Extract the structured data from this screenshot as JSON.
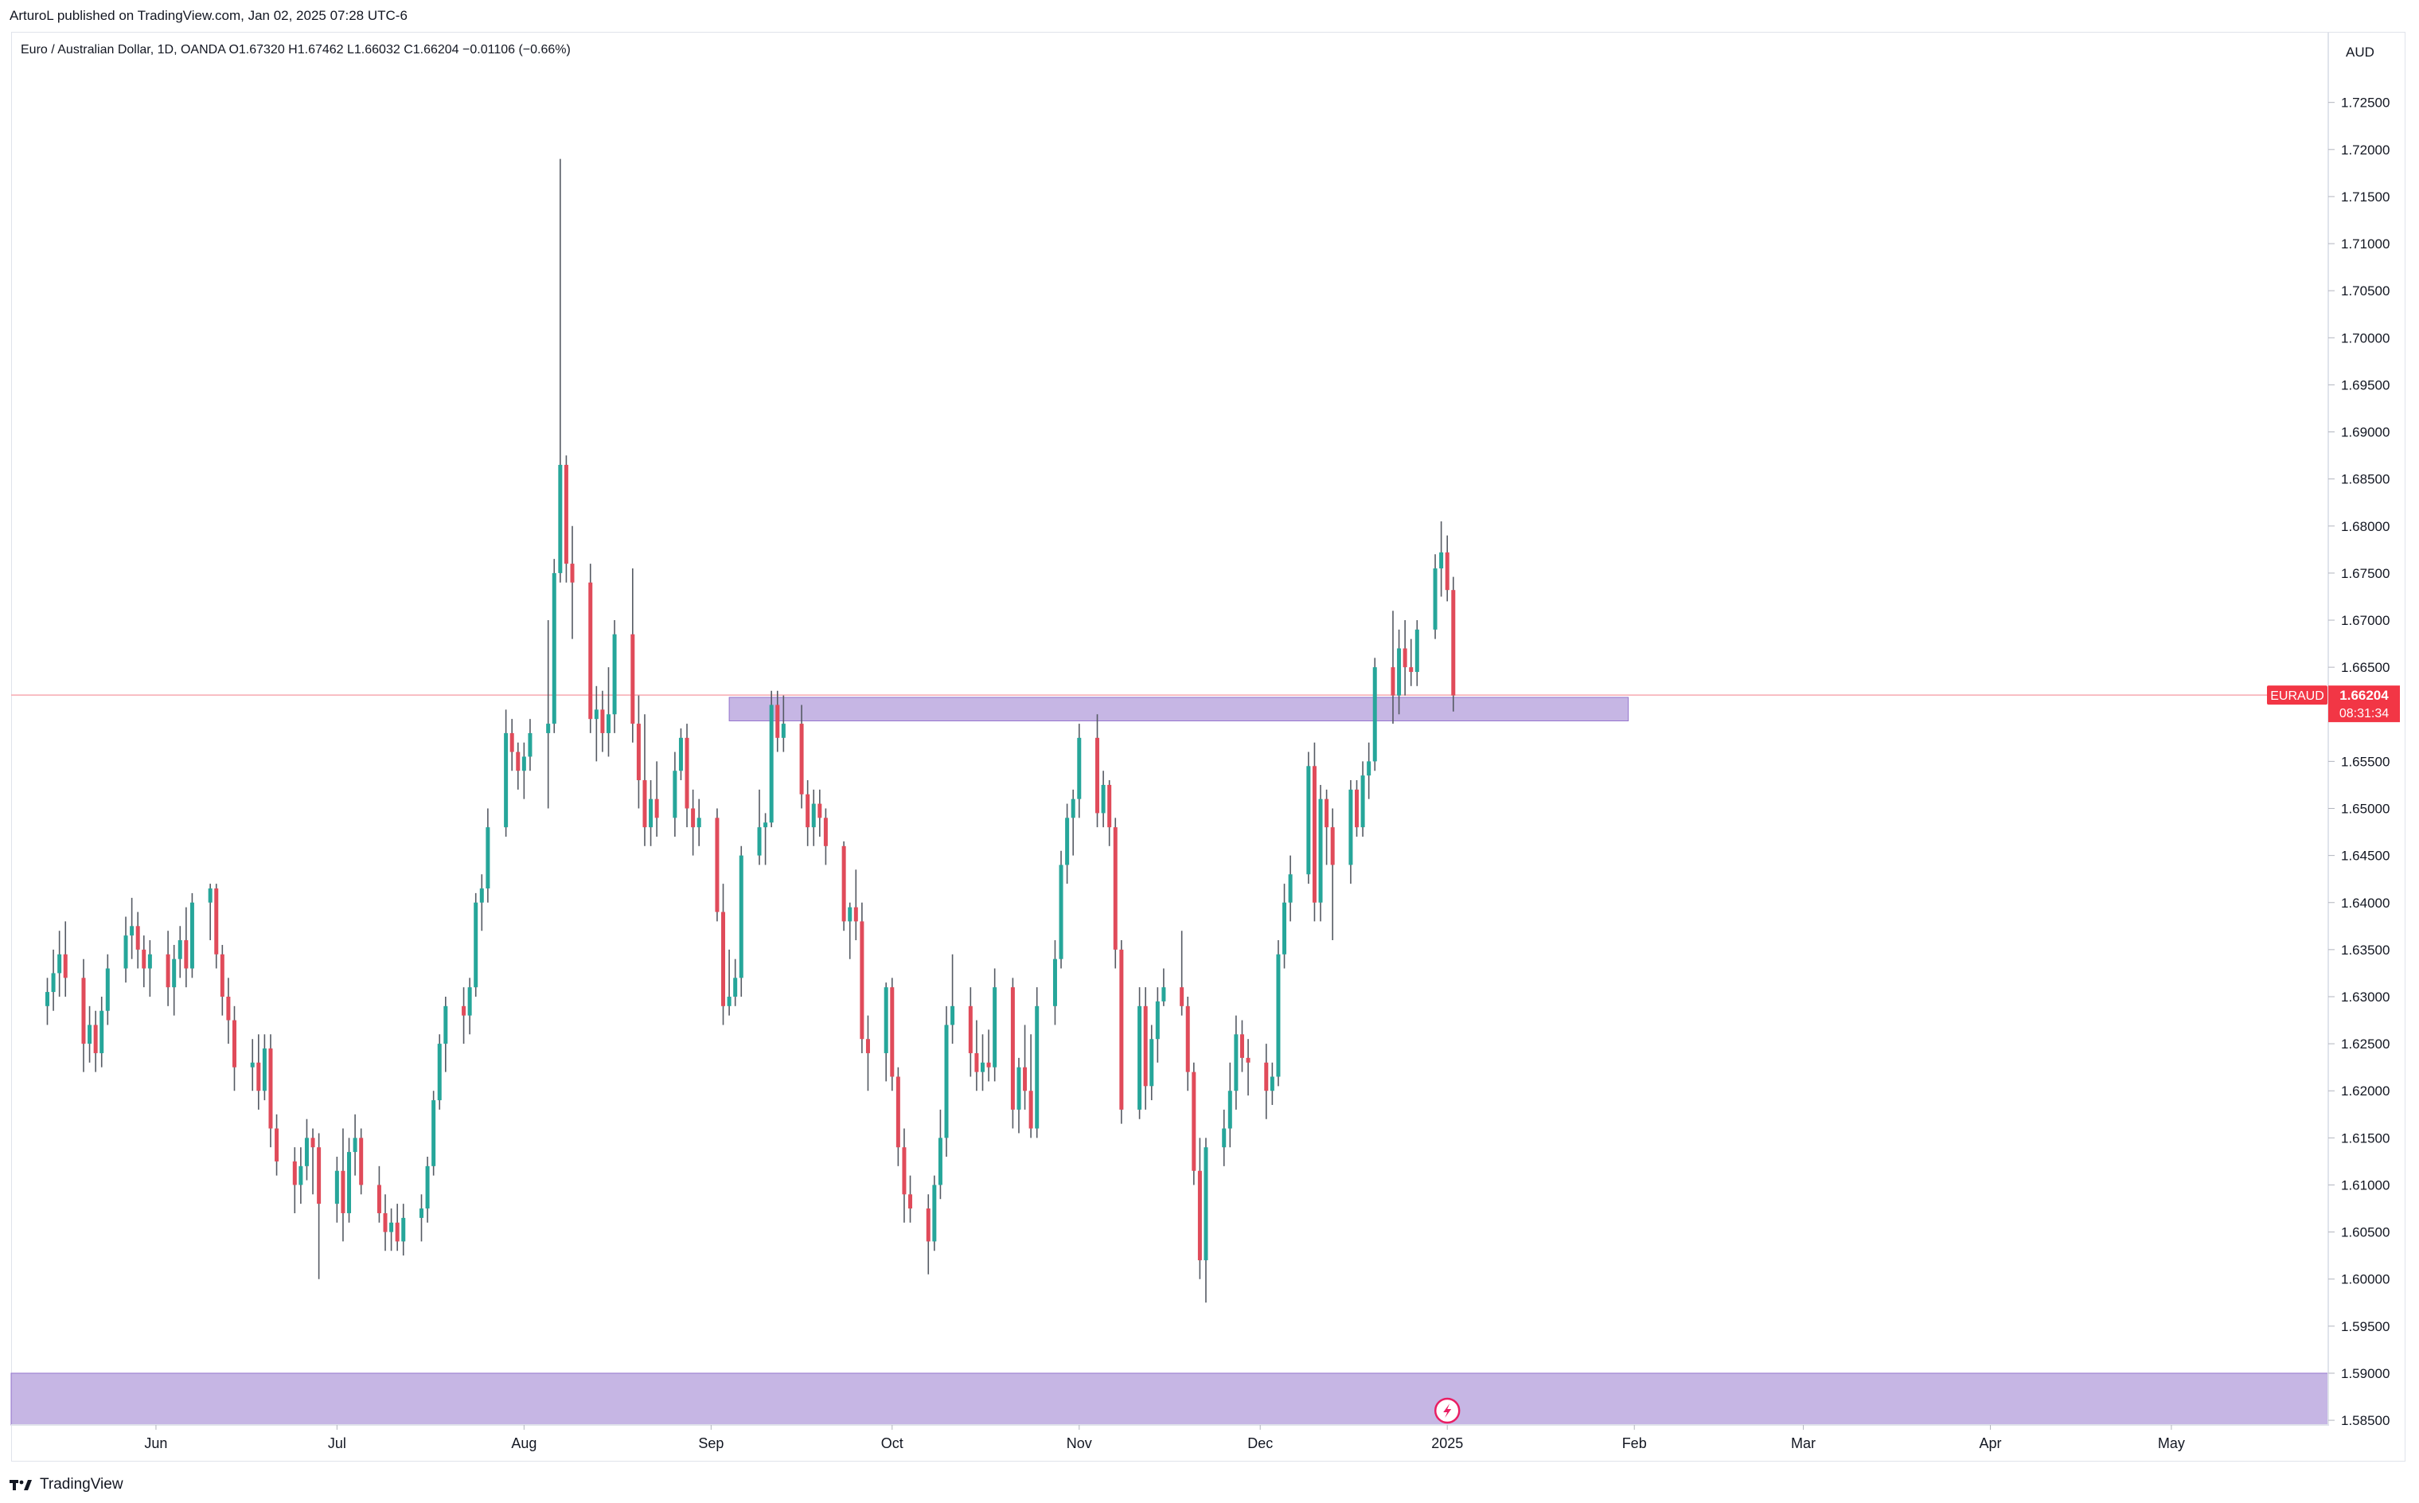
{
  "header": {
    "published": "ArturoL published on TradingView.com, Jan 02, 2025 07:28 UTC-6"
  },
  "legend": {
    "text": "Euro / Australian Dollar, 1D, OANDA  O1.67320  H1.67462  L1.66032  C1.66204  −0.01106 (−0.66%)"
  },
  "footer": {
    "brand": "TradingView"
  },
  "colors": {
    "up": "#26a69a",
    "down": "#e04b5a",
    "zone": "#b39ddb",
    "price_line": "#f7a9b0",
    "price_label": "#f23645"
  },
  "chart_data": {
    "type": "candlestick",
    "symbol": "EURAUD",
    "currency_label": "AUD",
    "last_price": "1.66204",
    "countdown": "08:31:34",
    "ylim": [
      1.5845,
      1.7325
    ],
    "y_ticks": [
      "1.72500",
      "1.72000",
      "1.71500",
      "1.71000",
      "1.70500",
      "1.70000",
      "1.69500",
      "1.69000",
      "1.68500",
      "1.68000",
      "1.67500",
      "1.67000",
      "1.66500",
      "1.66000",
      "1.65500",
      "1.65000",
      "1.64500",
      "1.64000",
      "1.63500",
      "1.63000",
      "1.62500",
      "1.62000",
      "1.61500",
      "1.61000",
      "1.60500",
      "1.60000",
      "1.59500",
      "1.59000",
      "1.58500"
    ],
    "x_labels": [
      {
        "label": "Jun",
        "date": "2024-06-01"
      },
      {
        "label": "Jul",
        "date": "2024-07-01"
      },
      {
        "label": "Aug",
        "date": "2024-08-01"
      },
      {
        "label": "Sep",
        "date": "2024-09-01"
      },
      {
        "label": "Oct",
        "date": "2024-10-01"
      },
      {
        "label": "Nov",
        "date": "2024-11-01"
      },
      {
        "label": "Dec",
        "date": "2024-12-01"
      },
      {
        "label": "2025",
        "date": "2025-01-01"
      },
      {
        "label": "Feb",
        "date": "2025-02-01"
      },
      {
        "label": "Mar",
        "date": "2025-03-01"
      },
      {
        "label": "Apr",
        "date": "2025-04-01"
      },
      {
        "label": "May",
        "date": "2025-05-01"
      }
    ],
    "x_range": [
      "2024-05-08",
      "2025-05-27"
    ],
    "zones": [
      {
        "from_date": "2024-09-04",
        "to_date": "2025-01-31",
        "low": 1.6593,
        "high": 1.6618
      },
      {
        "from_date": "2024-05-08",
        "to_date": "2025-05-27",
        "low": 1.5845,
        "high": 1.59
      }
    ],
    "candles": [
      [
        "2024-05-14",
        1.629,
        1.632,
        1.627,
        1.6305
      ],
      [
        "2024-05-15",
        1.6305,
        1.635,
        1.6285,
        1.6325
      ],
      [
        "2024-05-16",
        1.6325,
        1.637,
        1.63,
        1.6345
      ],
      [
        "2024-05-17",
        1.6345,
        1.638,
        1.63,
        1.632
      ],
      [
        "2024-05-20",
        1.632,
        1.634,
        1.622,
        1.625
      ],
      [
        "2024-05-21",
        1.625,
        1.629,
        1.623,
        1.627
      ],
      [
        "2024-05-22",
        1.627,
        1.6285,
        1.622,
        1.624
      ],
      [
        "2024-05-23",
        1.624,
        1.63,
        1.6225,
        1.6285
      ],
      [
        "2024-05-24",
        1.6285,
        1.6345,
        1.627,
        1.633
      ],
      [
        "2024-05-27",
        1.633,
        1.6385,
        1.6315,
        1.6365
      ],
      [
        "2024-05-28",
        1.6365,
        1.6405,
        1.634,
        1.6375
      ],
      [
        "2024-05-29",
        1.6375,
        1.639,
        1.633,
        1.635
      ],
      [
        "2024-05-30",
        1.635,
        1.6365,
        1.631,
        1.633
      ],
      [
        "2024-05-31",
        1.633,
        1.636,
        1.63,
        1.6345
      ],
      [
        "2024-06-03",
        1.6345,
        1.637,
        1.629,
        1.631
      ],
      [
        "2024-06-04",
        1.631,
        1.6355,
        1.628,
        1.634
      ],
      [
        "2024-06-05",
        1.634,
        1.6375,
        1.632,
        1.636
      ],
      [
        "2024-06-06",
        1.636,
        1.6395,
        1.631,
        1.633
      ],
      [
        "2024-06-07",
        1.633,
        1.641,
        1.632,
        1.64
      ],
      [
        "2024-06-10",
        1.64,
        1.642,
        1.636,
        1.6415
      ],
      [
        "2024-06-11",
        1.6415,
        1.642,
        1.633,
        1.6345
      ],
      [
        "2024-06-12",
        1.6345,
        1.6355,
        1.628,
        1.63
      ],
      [
        "2024-06-13",
        1.63,
        1.632,
        1.625,
        1.6275
      ],
      [
        "2024-06-14",
        1.6275,
        1.629,
        1.62,
        1.6225
      ],
      [
        "2024-06-17",
        1.6225,
        1.6255,
        1.62,
        1.623
      ],
      [
        "2024-06-18",
        1.623,
        1.626,
        1.618,
        1.62
      ],
      [
        "2024-06-19",
        1.62,
        1.626,
        1.619,
        1.6245
      ],
      [
        "2024-06-20",
        1.6245,
        1.626,
        1.614,
        1.616
      ],
      [
        "2024-06-21",
        1.616,
        1.6175,
        1.611,
        1.6125
      ],
      [
        "2024-06-24",
        1.6125,
        1.614,
        1.607,
        1.61
      ],
      [
        "2024-06-25",
        1.61,
        1.614,
        1.608,
        1.612
      ],
      [
        "2024-06-26",
        1.612,
        1.617,
        1.6105,
        1.615
      ],
      [
        "2024-06-27",
        1.615,
        1.616,
        1.609,
        1.614
      ],
      [
        "2024-06-28",
        1.614,
        1.6155,
        1.6,
        1.608
      ],
      [
        "2024-07-01",
        1.608,
        1.613,
        1.606,
        1.6115
      ],
      [
        "2024-07-02",
        1.6115,
        1.616,
        1.604,
        1.607
      ],
      [
        "2024-07-03",
        1.607,
        1.615,
        1.606,
        1.6135
      ],
      [
        "2024-07-04",
        1.6135,
        1.6175,
        1.611,
        1.615
      ],
      [
        "2024-07-05",
        1.615,
        1.616,
        1.609,
        1.61
      ],
      [
        "2024-07-08",
        1.61,
        1.612,
        1.606,
        1.607
      ],
      [
        "2024-07-09",
        1.607,
        1.609,
        1.603,
        1.605
      ],
      [
        "2024-07-10",
        1.605,
        1.6075,
        1.603,
        1.606
      ],
      [
        "2024-07-11",
        1.606,
        1.608,
        1.603,
        1.604
      ],
      [
        "2024-07-12",
        1.604,
        1.608,
        1.6025,
        1.6065
      ],
      [
        "2024-07-15",
        1.6065,
        1.609,
        1.604,
        1.6075
      ],
      [
        "2024-07-16",
        1.6075,
        1.613,
        1.606,
        1.612
      ],
      [
        "2024-07-17",
        1.612,
        1.62,
        1.611,
        1.619
      ],
      [
        "2024-07-18",
        1.619,
        1.626,
        1.618,
        1.625
      ],
      [
        "2024-07-19",
        1.625,
        1.63,
        1.622,
        1.629
      ],
      [
        "2024-07-22",
        1.629,
        1.631,
        1.625,
        1.628
      ],
      [
        "2024-07-23",
        1.628,
        1.632,
        1.626,
        1.631
      ],
      [
        "2024-07-24",
        1.631,
        1.641,
        1.63,
        1.64
      ],
      [
        "2024-07-25",
        1.64,
        1.643,
        1.637,
        1.6415
      ],
      [
        "2024-07-26",
        1.6415,
        1.65,
        1.64,
        1.648
      ],
      [
        "2024-07-29",
        1.648,
        1.6605,
        1.647,
        1.658
      ],
      [
        "2024-07-30",
        1.658,
        1.6595,
        1.654,
        1.656
      ],
      [
        "2024-07-31",
        1.656,
        1.657,
        1.652,
        1.654
      ],
      [
        "2024-08-01",
        1.654,
        1.657,
        1.651,
        1.6555
      ],
      [
        "2024-08-02",
        1.6555,
        1.6595,
        1.654,
        1.658
      ],
      [
        "2024-08-05",
        1.658,
        1.67,
        1.65,
        1.659
      ],
      [
        "2024-08-06",
        1.659,
        1.6765,
        1.658,
        1.675
      ],
      [
        "2024-08-07",
        1.675,
        1.719,
        1.674,
        1.6865
      ],
      [
        "2024-08-08",
        1.6865,
        1.6875,
        1.674,
        1.676
      ],
      [
        "2024-08-09",
        1.676,
        1.68,
        1.668,
        1.674
      ],
      [
        "2024-08-12",
        1.674,
        1.676,
        1.658,
        1.6595
      ],
      [
        "2024-08-13",
        1.6595,
        1.663,
        1.655,
        1.6605
      ],
      [
        "2024-08-14",
        1.6605,
        1.6625,
        1.656,
        1.658
      ],
      [
        "2024-08-15",
        1.658,
        1.665,
        1.6555,
        1.66
      ],
      [
        "2024-08-16",
        1.66,
        1.67,
        1.658,
        1.6685
      ],
      [
        "2024-08-19",
        1.6685,
        1.6755,
        1.657,
        1.659
      ],
      [
        "2024-08-20",
        1.659,
        1.662,
        1.65,
        1.653
      ],
      [
        "2024-08-21",
        1.653,
        1.66,
        1.646,
        1.648
      ],
      [
        "2024-08-22",
        1.648,
        1.653,
        1.646,
        1.651
      ],
      [
        "2024-08-23",
        1.651,
        1.655,
        1.647,
        1.649
      ],
      [
        "2024-08-26",
        1.649,
        1.656,
        1.647,
        1.654
      ],
      [
        "2024-08-27",
        1.654,
        1.6585,
        1.653,
        1.6575
      ],
      [
        "2024-08-28",
        1.6575,
        1.659,
        1.648,
        1.65
      ],
      [
        "2024-08-29",
        1.65,
        1.652,
        1.645,
        1.648
      ],
      [
        "2024-08-30",
        1.648,
        1.651,
        1.646,
        1.649
      ],
      [
        "2024-09-02",
        1.649,
        1.65,
        1.638,
        1.639
      ],
      [
        "2024-09-03",
        1.639,
        1.642,
        1.627,
        1.629
      ],
      [
        "2024-09-04",
        1.629,
        1.635,
        1.628,
        1.63
      ],
      [
        "2024-09-05",
        1.63,
        1.634,
        1.629,
        1.632
      ],
      [
        "2024-09-06",
        1.632,
        1.646,
        1.63,
        1.645
      ],
      [
        "2024-09-09",
        1.645,
        1.652,
        1.644,
        1.648
      ],
      [
        "2024-09-10",
        1.648,
        1.6495,
        1.644,
        1.6485
      ],
      [
        "2024-09-11",
        1.6485,
        1.6625,
        1.648,
        1.661
      ],
      [
        "2024-09-12",
        1.661,
        1.6625,
        1.656,
        1.6575
      ],
      [
        "2024-09-13",
        1.6575,
        1.662,
        1.656,
        1.659
      ],
      [
        "2024-09-16",
        1.659,
        1.661,
        1.65,
        1.6515
      ],
      [
        "2024-09-17",
        1.6515,
        1.653,
        1.646,
        1.648
      ],
      [
        "2024-09-18",
        1.648,
        1.652,
        1.646,
        1.6505
      ],
      [
        "2024-09-19",
        1.6505,
        1.652,
        1.647,
        1.649
      ],
      [
        "2024-09-20",
        1.649,
        1.65,
        1.644,
        1.646
      ],
      [
        "2024-09-23",
        1.646,
        1.6465,
        1.637,
        1.638
      ],
      [
        "2024-09-24",
        1.638,
        1.64,
        1.634,
        1.6395
      ],
      [
        "2024-09-25",
        1.6395,
        1.6435,
        1.636,
        1.638
      ],
      [
        "2024-09-26",
        1.638,
        1.64,
        1.624,
        1.6255
      ],
      [
        "2024-09-27",
        1.6255,
        1.628,
        1.62,
        1.624
      ],
      [
        "2024-09-30",
        1.624,
        1.6315,
        1.621,
        1.631
      ],
      [
        "2024-10-01",
        1.631,
        1.632,
        1.62,
        1.6215
      ],
      [
        "2024-10-02",
        1.6215,
        1.6225,
        1.612,
        1.614
      ],
      [
        "2024-10-03",
        1.614,
        1.616,
        1.606,
        1.609
      ],
      [
        "2024-10-04",
        1.609,
        1.611,
        1.606,
        1.6075
      ],
      [
        "2024-10-07",
        1.6075,
        1.609,
        1.6005,
        1.604
      ],
      [
        "2024-10-08",
        1.604,
        1.611,
        1.603,
        1.61
      ],
      [
        "2024-10-09",
        1.61,
        1.618,
        1.6085,
        1.615
      ],
      [
        "2024-10-10",
        1.615,
        1.629,
        1.613,
        1.627
      ],
      [
        "2024-10-11",
        1.627,
        1.6345,
        1.625,
        1.629
      ],
      [
        "2024-10-14",
        1.629,
        1.631,
        1.6215,
        1.624
      ],
      [
        "2024-10-15",
        1.624,
        1.6275,
        1.62,
        1.622
      ],
      [
        "2024-10-16",
        1.622,
        1.626,
        1.62,
        1.623
      ],
      [
        "2024-10-17",
        1.623,
        1.6265,
        1.621,
        1.6225
      ],
      [
        "2024-10-18",
        1.6225,
        1.633,
        1.621,
        1.631
      ],
      [
        "2024-10-21",
        1.631,
        1.632,
        1.616,
        1.618
      ],
      [
        "2024-10-22",
        1.618,
        1.6235,
        1.6155,
        1.6225
      ],
      [
        "2024-10-23",
        1.6225,
        1.627,
        1.618,
        1.62
      ],
      [
        "2024-10-24",
        1.62,
        1.626,
        1.615,
        1.616
      ],
      [
        "2024-10-25",
        1.616,
        1.631,
        1.615,
        1.629
      ],
      [
        "2024-10-28",
        1.629,
        1.636,
        1.627,
        1.634
      ],
      [
        "2024-10-29",
        1.634,
        1.6455,
        1.633,
        1.644
      ],
      [
        "2024-10-30",
        1.644,
        1.6505,
        1.642,
        1.649
      ],
      [
        "2024-10-31",
        1.649,
        1.652,
        1.645,
        1.651
      ],
      [
        "2024-11-01",
        1.651,
        1.659,
        1.649,
        1.6575
      ],
      [
        "2024-11-04",
        1.6575,
        1.66,
        1.648,
        1.6495
      ],
      [
        "2024-11-05",
        1.6495,
        1.654,
        1.648,
        1.6525
      ],
      [
        "2024-11-06",
        1.6525,
        1.653,
        1.646,
        1.648
      ],
      [
        "2024-11-07",
        1.648,
        1.649,
        1.633,
        1.635
      ],
      [
        "2024-11-08",
        1.635,
        1.636,
        1.6165,
        1.618
      ],
      [
        "2024-11-11",
        1.618,
        1.631,
        1.617,
        1.629
      ],
      [
        "2024-11-12",
        1.629,
        1.631,
        1.618,
        1.6205
      ],
      [
        "2024-11-13",
        1.6205,
        1.627,
        1.619,
        1.6255
      ],
      [
        "2024-11-14",
        1.6255,
        1.631,
        1.623,
        1.6295
      ],
      [
        "2024-11-15",
        1.6295,
        1.633,
        1.629,
        1.631
      ],
      [
        "2024-11-18",
        1.631,
        1.637,
        1.628,
        1.629
      ],
      [
        "2024-11-19",
        1.629,
        1.63,
        1.62,
        1.622
      ],
      [
        "2024-11-20",
        1.622,
        1.623,
        1.61,
        1.6115
      ],
      [
        "2024-11-21",
        1.6115,
        1.615,
        1.6,
        1.602
      ],
      [
        "2024-11-22",
        1.602,
        1.615,
        1.5975,
        1.614
      ],
      [
        "2024-11-25",
        1.614,
        1.618,
        1.612,
        1.616
      ],
      [
        "2024-11-26",
        1.616,
        1.623,
        1.614,
        1.62
      ],
      [
        "2024-11-27",
        1.62,
        1.628,
        1.618,
        1.626
      ],
      [
        "2024-11-28",
        1.626,
        1.6275,
        1.622,
        1.6235
      ],
      [
        "2024-11-29",
        1.6235,
        1.6255,
        1.6195,
        1.623
      ],
      [
        "2024-12-02",
        1.623,
        1.625,
        1.617,
        1.62
      ],
      [
        "2024-12-03",
        1.62,
        1.623,
        1.6185,
        1.6215
      ],
      [
        "2024-12-04",
        1.6215,
        1.636,
        1.6205,
        1.6345
      ],
      [
        "2024-12-05",
        1.6345,
        1.642,
        1.633,
        1.64
      ],
      [
        "2024-12-06",
        1.64,
        1.645,
        1.638,
        1.643
      ],
      [
        "2024-12-09",
        1.643,
        1.656,
        1.642,
        1.6545
      ],
      [
        "2024-12-10",
        1.6545,
        1.657,
        1.638,
        1.64
      ],
      [
        "2024-12-11",
        1.64,
        1.6525,
        1.638,
        1.651
      ],
      [
        "2024-12-12",
        1.651,
        1.652,
        1.644,
        1.648
      ],
      [
        "2024-12-13",
        1.648,
        1.65,
        1.636,
        1.644
      ],
      [
        "2024-12-16",
        1.644,
        1.653,
        1.642,
        1.652
      ],
      [
        "2024-12-17",
        1.652,
        1.653,
        1.647,
        1.648
      ],
      [
        "2024-12-18",
        1.648,
        1.655,
        1.647,
        1.6535
      ],
      [
        "2024-12-19",
        1.6535,
        1.657,
        1.651,
        1.655
      ],
      [
        "2024-12-20",
        1.655,
        1.666,
        1.654,
        1.665
      ],
      [
        "2024-12-23",
        1.665,
        1.671,
        1.659,
        1.662
      ],
      [
        "2024-12-24",
        1.662,
        1.669,
        1.66,
        1.667
      ],
      [
        "2024-12-25",
        1.667,
        1.67,
        1.662,
        1.665
      ],
      [
        "2024-12-26",
        1.665,
        1.668,
        1.663,
        1.6645
      ],
      [
        "2024-12-27",
        1.6645,
        1.67,
        1.663,
        1.669
      ],
      [
        "2024-12-30",
        1.669,
        1.677,
        1.668,
        1.6755
      ],
      [
        "2024-12-31",
        1.6755,
        1.6805,
        1.6725,
        1.6772
      ],
      [
        "2025-01-01",
        1.6772,
        1.679,
        1.672,
        1.6732
      ],
      [
        "2025-01-02",
        1.6732,
        1.6746,
        1.6603,
        1.662
      ]
    ]
  }
}
